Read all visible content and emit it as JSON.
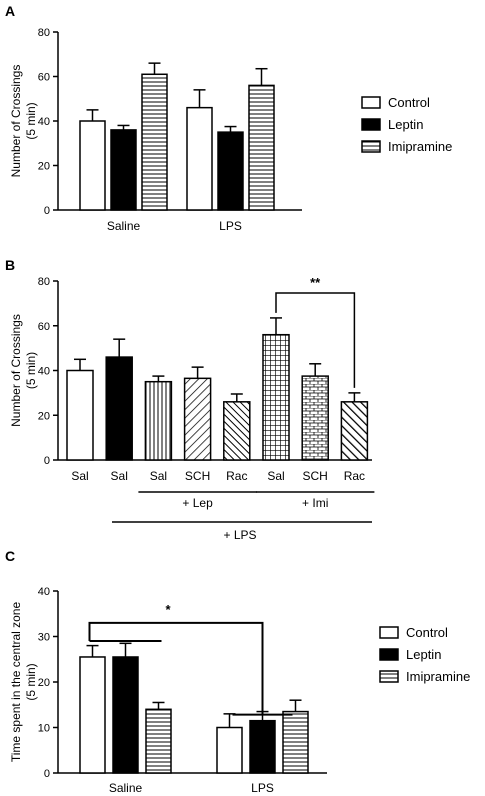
{
  "chart_data": [
    {
      "type": "bar",
      "panel": "A",
      "ylabel": [
        "Number of Crossings",
        "(5 min)"
      ],
      "ylim": [
        0,
        80
      ],
      "yticks": [
        0,
        20,
        40,
        60,
        80
      ],
      "categories": [
        "Saline",
        "LPS"
      ],
      "series": [
        {
          "name": "Control",
          "values": [
            40,
            46
          ],
          "errors": [
            5,
            8
          ]
        },
        {
          "name": "Leptin",
          "values": [
            36,
            35
          ],
          "errors": [
            2,
            2.5
          ]
        },
        {
          "name": "Imipramine",
          "values": [
            61,
            56
          ],
          "errors": [
            5,
            7.5
          ]
        }
      ],
      "legend": "right"
    },
    {
      "type": "bar",
      "panel": "B",
      "ylabel": [
        "Number of Crossings",
        "(5 min)"
      ],
      "ylim": [
        0,
        80
      ],
      "yticks": [
        0,
        20,
        40,
        60,
        80
      ],
      "bars": [
        {
          "label": "Sal",
          "value": 40,
          "error": 5,
          "pattern": "open"
        },
        {
          "label": "Sal",
          "value": 46,
          "error": 8,
          "pattern": "solid"
        },
        {
          "label": "Sal",
          "value": 35,
          "error": 2.5,
          "pattern": "vlines"
        },
        {
          "label": "SCH",
          "value": 36.5,
          "error": 5,
          "pattern": "diag"
        },
        {
          "label": "Rac",
          "value": 26,
          "error": 3.5,
          "pattern": "diagdense"
        },
        {
          "label": "Sal",
          "value": 56,
          "error": 7.5,
          "pattern": "grid"
        },
        {
          "label": "SCH",
          "value": 37.5,
          "error": 5.5,
          "pattern": "brick"
        },
        {
          "label": "Rac",
          "value": 26,
          "error": 4,
          "pattern": "diagback"
        }
      ],
      "groups": [
        {
          "label": "+ Lep",
          "from": 2,
          "to": 4
        },
        {
          "label": "+ Imi",
          "from": 5,
          "to": 7
        },
        {
          "label": "+ LPS",
          "from": 0,
          "to": 7
        }
      ],
      "significance": {
        "label": "**",
        "from": 5,
        "to": 7
      }
    },
    {
      "type": "bar",
      "panel": "C",
      "ylabel": [
        "Time spent in the central zone",
        "(5 min)"
      ],
      "ylim": [
        0,
        40
      ],
      "yticks": [
        0,
        10,
        20,
        30,
        40
      ],
      "categories": [
        "Saline",
        "LPS"
      ],
      "series": [
        {
          "name": "Control",
          "values": [
            25.5,
            10
          ],
          "errors": [
            2.5,
            3
          ]
        },
        {
          "name": "Leptin",
          "values": [
            25.5,
            11.5
          ],
          "errors": [
            3,
            2
          ]
        },
        {
          "name": "Imipramine",
          "values": [
            14,
            13.5
          ],
          "errors": [
            1.5,
            2.5
          ]
        }
      ],
      "legend": "right",
      "significance": {
        "label": "*"
      }
    }
  ]
}
